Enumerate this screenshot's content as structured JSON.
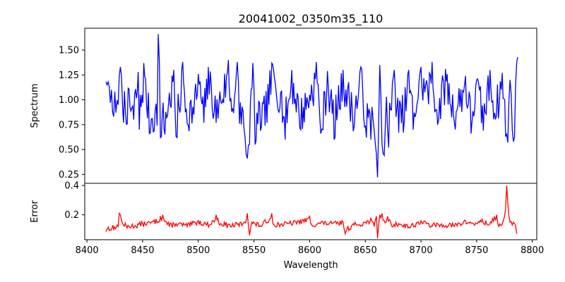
{
  "chart_data": [
    {
      "type": "line",
      "title": "20041002_0350m35_110",
      "xlabel": "",
      "ylabel": "Spectrum",
      "xlim": [
        8398,
        8804
      ],
      "ylim": [
        0.16,
        1.72
      ],
      "yticks": [
        0.25,
        0.5,
        0.75,
        1.0,
        1.25,
        1.5
      ],
      "ytick_labels": [
        "0.25",
        "0.50",
        "0.75",
        "1.00",
        "1.25",
        "1.50"
      ],
      "grid": false,
      "series": [
        {
          "color": "#0000ff",
          "noise_amplitude": 0.2,
          "x_range": [
            8417,
            8787
          ],
          "points": [
            [
              8417,
              1.18
            ],
            [
              8418,
              1.15
            ],
            [
              8419,
              1.18
            ],
            [
              8420,
              1.13
            ],
            [
              8421,
              0.97
            ],
            [
              8422,
              1.1
            ],
            [
              8424,
              0.83
            ],
            [
              8426,
              0.87
            ],
            [
              8428,
              0.95
            ],
            [
              8429,
              1.24
            ],
            [
              8430,
              1.33
            ],
            [
              8432,
              0.92
            ],
            [
              8442,
              0.8
            ],
            [
              8446,
              1.28
            ],
            [
              8447,
              0.7
            ],
            [
              8451,
              1.37
            ],
            [
              8456,
              0.66
            ],
            [
              8463,
              0.74
            ],
            [
              8464,
              1.66
            ],
            [
              8465,
              1.39
            ],
            [
              8466,
              0.62
            ],
            [
              8470,
              0.65
            ],
            [
              8478,
              1.3
            ],
            [
              8480,
              0.63
            ],
            [
              8481,
              0.62
            ],
            [
              8486,
              1.38
            ],
            [
              8490,
              0.76
            ],
            [
              8496,
              0.85
            ],
            [
              8500,
              1.26
            ],
            [
              8505,
              0.77
            ],
            [
              8509,
              1.33
            ],
            [
              8516,
              0.77
            ],
            [
              8527,
              1.4
            ],
            [
              8530,
              0.88
            ],
            [
              8535,
              1.38
            ],
            [
              8537,
              0.76
            ],
            [
              8541,
              0.72
            ],
            [
              8542,
              0.62
            ],
            [
              8543,
              0.45
            ],
            [
              8544,
              0.41
            ],
            [
              8546,
              0.55
            ],
            [
              8549,
              1.37
            ],
            [
              8551,
              0.55
            ],
            [
              8560,
              0.74
            ],
            [
              8566,
              1.37
            ],
            [
              8574,
              1.07
            ],
            [
              8578,
              0.6
            ],
            [
              8584,
              1.3
            ],
            [
              8592,
              0.7
            ],
            [
              8600,
              1.05
            ],
            [
              8606,
              1.38
            ],
            [
              8610,
              0.66
            ],
            [
              8612,
              0.7
            ],
            [
              8616,
              1.29
            ],
            [
              8622,
              0.6
            ],
            [
              8630,
              1.3
            ],
            [
              8640,
              0.73
            ],
            [
              8646,
              1.33
            ],
            [
              8651,
              0.62
            ],
            [
              8655,
              0.6
            ],
            [
              8657,
              0.8
            ],
            [
              8659,
              0.56
            ],
            [
              8660,
              0.45
            ],
            [
              8661,
              0.22
            ],
            [
              8662,
              0.75
            ],
            [
              8663,
              1.35
            ],
            [
              8665,
              0.55
            ],
            [
              8666,
              0.46
            ],
            [
              8667,
              0.44
            ],
            [
              8669,
              1.03
            ],
            [
              8671,
              0.52
            ],
            [
              8676,
              1.3
            ],
            [
              8680,
              0.67
            ],
            [
              8685,
              0.78
            ],
            [
              8689,
              1.3
            ],
            [
              8693,
              0.7
            ],
            [
              8700,
              1.33
            ],
            [
              8706,
              1.1
            ],
            [
              8710,
              1.38
            ],
            [
              8715,
              0.75
            ],
            [
              8722,
              1.31
            ],
            [
              8730,
              0.77
            ],
            [
              8740,
              1.24
            ],
            [
              8745,
              0.66
            ],
            [
              8750,
              1.2
            ],
            [
              8756,
              0.69
            ],
            [
              8762,
              1.3
            ],
            [
              8767,
              0.81
            ],
            [
              8773,
              1.27
            ],
            [
              8776,
              0.63
            ],
            [
              8778,
              0.57
            ],
            [
              8780,
              1.2
            ],
            [
              8782,
              0.7
            ],
            [
              8783,
              0.58
            ],
            [
              8784,
              0.62
            ],
            [
              8785,
              1.15
            ],
            [
              8786,
              1.38
            ],
            [
              8787,
              1.43
            ]
          ]
        }
      ]
    },
    {
      "type": "line",
      "title": "",
      "xlabel": "Wavelength",
      "ylabel": "Error",
      "xlim": [
        8398,
        8804
      ],
      "ylim": [
        0.03,
        0.415
      ],
      "xticks": [
        8400,
        8450,
        8500,
        8550,
        8600,
        8650,
        8700,
        8750,
        8800
      ],
      "xtick_labels": [
        "8400",
        "8450",
        "8500",
        "8550",
        "8600",
        "8650",
        "8700",
        "8750",
        "8800"
      ],
      "yticks": [
        0.2,
        0.4
      ],
      "ytick_labels": [
        "0.2",
        "0.4"
      ],
      "grid": false,
      "series": [
        {
          "color": "#ff0000",
          "noise_amplitude": 0.018,
          "x_range": [
            8417,
            8787
          ],
          "points": [
            [
              8417,
              0.085
            ],
            [
              8420,
              0.093
            ],
            [
              8424,
              0.1
            ],
            [
              8428,
              0.12
            ],
            [
              8429,
              0.21
            ],
            [
              8430,
              0.2
            ],
            [
              8432,
              0.14
            ],
            [
              8436,
              0.11
            ],
            [
              8444,
              0.12
            ],
            [
              8450,
              0.14
            ],
            [
              8458,
              0.15
            ],
            [
              8466,
              0.19
            ],
            [
              8468,
              0.2
            ],
            [
              8474,
              0.12
            ],
            [
              8480,
              0.14
            ],
            [
              8490,
              0.12
            ],
            [
              8500,
              0.16
            ],
            [
              8510,
              0.13
            ],
            [
              8516,
              0.2
            ],
            [
              8520,
              0.14
            ],
            [
              8530,
              0.12
            ],
            [
              8540,
              0.14
            ],
            [
              8544,
              0.21
            ],
            [
              8546,
              0.06
            ],
            [
              8548,
              0.15
            ],
            [
              8556,
              0.12
            ],
            [
              8566,
              0.21
            ],
            [
              8568,
              0.13
            ],
            [
              8580,
              0.14
            ],
            [
              8590,
              0.16
            ],
            [
              8600,
              0.19
            ],
            [
              8602,
              0.13
            ],
            [
              8612,
              0.15
            ],
            [
              8620,
              0.14
            ],
            [
              8630,
              0.15
            ],
            [
              8632,
              0.07
            ],
            [
              8640,
              0.13
            ],
            [
              8650,
              0.15
            ],
            [
              8655,
              0.18
            ],
            [
              8658,
              0.12
            ],
            [
              8660,
              0.19
            ],
            [
              8661,
              0.04
            ],
            [
              8663,
              0.2
            ],
            [
              8665,
              0.21
            ],
            [
              8667,
              0.16
            ],
            [
              8670,
              0.19
            ],
            [
              8675,
              0.12
            ],
            [
              8680,
              0.14
            ],
            [
              8690,
              0.11
            ],
            [
              8700,
              0.16
            ],
            [
              8710,
              0.12
            ],
            [
              8720,
              0.13
            ],
            [
              8730,
              0.12
            ],
            [
              8740,
              0.16
            ],
            [
              8750,
              0.14
            ],
            [
              8755,
              0.17
            ],
            [
              8760,
              0.13
            ],
            [
              8766,
              0.19
            ],
            [
              8768,
              0.2
            ],
            [
              8770,
              0.12
            ],
            [
              8774,
              0.16
            ],
            [
              8776,
              0.24
            ],
            [
              8777,
              0.4
            ],
            [
              8778,
              0.28
            ],
            [
              8780,
              0.15
            ],
            [
              8782,
              0.13
            ],
            [
              8784,
              0.14
            ],
            [
              8786,
              0.07
            ]
          ]
        }
      ]
    }
  ]
}
